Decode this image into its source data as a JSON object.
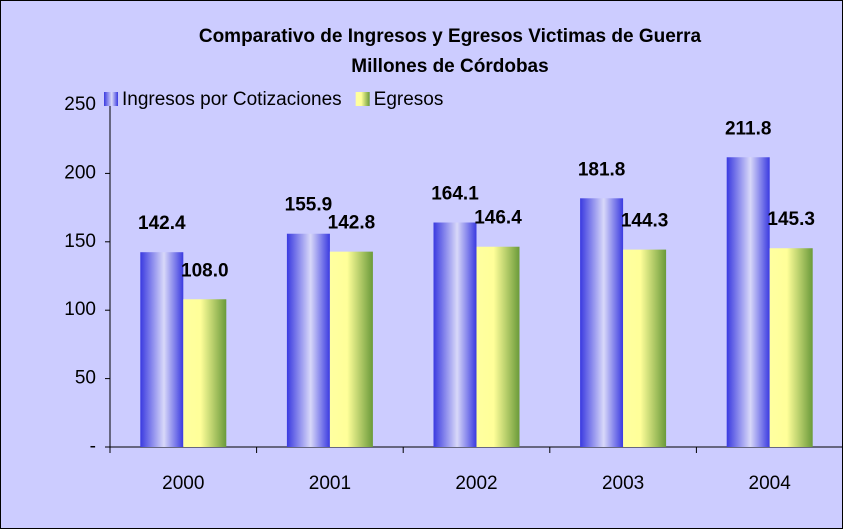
{
  "chart_data": {
    "type": "bar",
    "title": "Comparativo de Ingresos y Egresos Victimas de Guerra",
    "subtitle": "Millones de Córdobas",
    "categories": [
      "2000",
      "2001",
      "2002",
      "2003",
      "2004"
    ],
    "series": [
      {
        "name": "Ingresos por Cotizaciones",
        "color": "#3a3ae0",
        "values": [
          142.4,
          155.9,
          164.1,
          181.8,
          211.8
        ],
        "value_labels": [
          "142.4",
          "155.9",
          "164.1",
          "181.8",
          "211.8"
        ]
      },
      {
        "name": "Egresos",
        "color": "#6a9a3a",
        "values": [
          108,
          142.8,
          146.4,
          144.3,
          145.3
        ],
        "value_labels": [
          "108.0",
          "142.8",
          "146.4",
          "144.3",
          "145.3"
        ]
      }
    ],
    "ylim": [
      0,
      250
    ],
    "yticks": [
      {
        "value": 0,
        "label": "-"
      },
      50,
      100,
      150,
      200,
      250
    ],
    "grid": false,
    "legend": "top-left"
  }
}
